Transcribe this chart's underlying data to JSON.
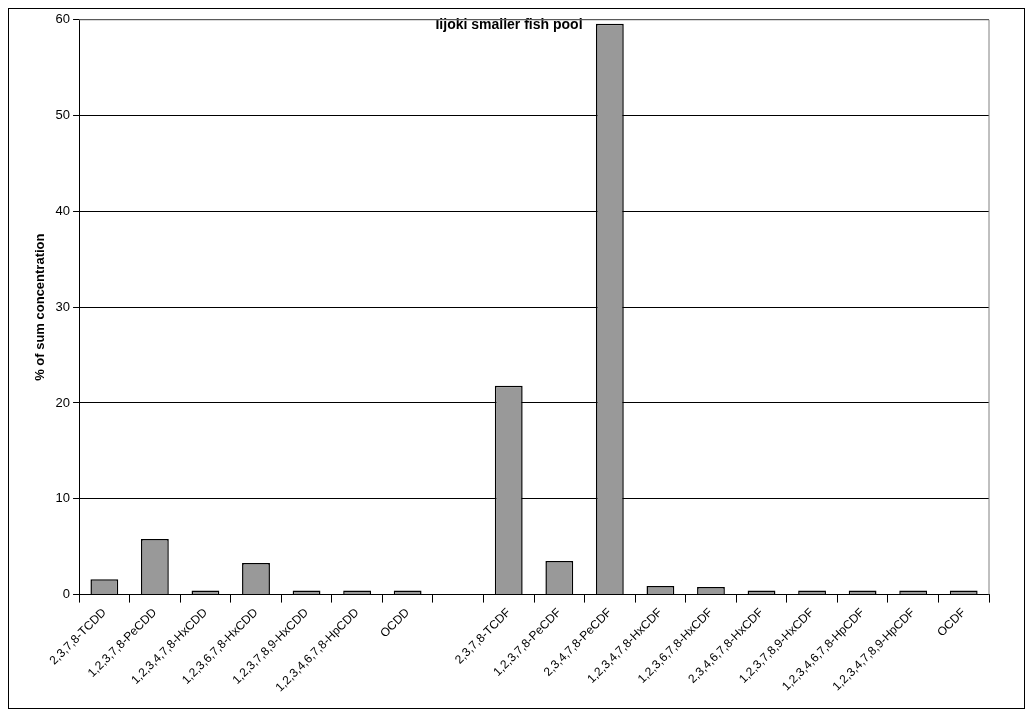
{
  "chart_data": {
    "type": "bar",
    "title": "Iijoki smaller fish pool",
    "ylabel": "% of sum concentration",
    "categories": [
      "2,3,7,8-TCDD",
      "1,2,3,7,8-PeCDD",
      "1,2,3,4,7,8-HxCDD",
      "1,2,3,6,7,8-HxCDD",
      "1,2,3,7,8,9-HxCDD",
      "1,2,3,4,6,7,8-HpCDD",
      "OCDD",
      null,
      "2,3,7,8-TCDF",
      "1,2,3,7,8-PeCDF",
      "2,3,4,7,8-PeCDF",
      "1,2,3,4,7,8-HxCDF",
      "1,2,3,6,7,8-HxCDF",
      "2,3,4,6,7,8-HxCDF",
      "1,2,3,7,8,9-HxCDF",
      "1,2,3,4,6,7,8-HpCDF",
      "1,2,3,4,7,8,9-HpCDF",
      "OCDF"
    ],
    "values": [
      1.6,
      5.8,
      0.2,
      3.3,
      0.2,
      0.1,
      0.1,
      null,
      21.8,
      3.5,
      59.6,
      0.9,
      0.8,
      0.4,
      0.1,
      0.1,
      0.1,
      0.1
    ],
    "color": "#999999",
    "ylim": [
      0,
      60
    ],
    "yticks": [
      0,
      10,
      20,
      30,
      40,
      50,
      60
    ],
    "grid": "y",
    "legend": false
  }
}
